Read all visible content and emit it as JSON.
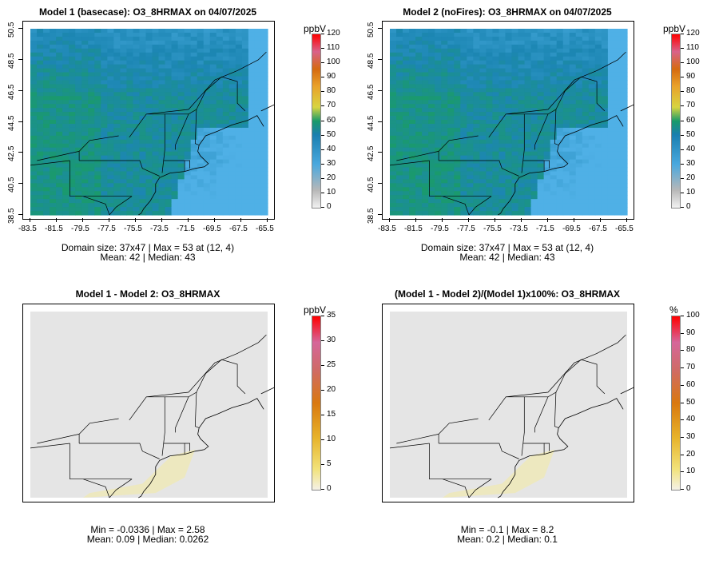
{
  "panels": [
    {
      "title": "Model 1 (basecase): O3_8HRMAX on 04/07/2025",
      "stats_line1": "Domain size: 37x47 | Max = 53 at (12, 4)",
      "stats_line2": "Mean: 42 |  Median: 43",
      "colorbar_unit": "ppbV",
      "colorbar_ticks": [
        "0",
        "10",
        "20",
        "30",
        "40",
        "50",
        "60",
        "70",
        "80",
        "90",
        "100",
        "110",
        "120"
      ],
      "field": "ozone"
    },
    {
      "title": "Model 2 (noFires): O3_8HRMAX on 04/07/2025",
      "stats_line1": "Domain size: 37x47 | Max = 53 at (12, 4)",
      "stats_line2": "Mean: 42 |  Median: 43",
      "colorbar_unit": "ppbV",
      "colorbar_ticks": [
        "0",
        "10",
        "20",
        "30",
        "40",
        "50",
        "60",
        "70",
        "80",
        "90",
        "100",
        "110",
        "120"
      ],
      "field": "ozone"
    },
    {
      "title": "Model 1 - Model 2: O3_8HRMAX",
      "stats_line1": "Min = -0.0336 | Max = 2.58",
      "stats_line2": "Mean: 0.09 |  Median: 0.0262",
      "colorbar_unit": "ppbV",
      "colorbar_ticks": [
        "0",
        "5",
        "10",
        "15",
        "20",
        "25",
        "30",
        "35"
      ],
      "field": "diff"
    },
    {
      "title": "(Model 1 - Model 2)/(Model 1)x100%: O3_8HRMAX",
      "stats_line1": "Min = -0.1 | Max = 8.2",
      "stats_line2": "Mean: 0.2 |  Median: 0.1",
      "colorbar_unit": "%",
      "colorbar_ticks": [
        "0",
        "10",
        "20",
        "30",
        "40",
        "50",
        "60",
        "70",
        "80",
        "90",
        "100"
      ],
      "field": "diff"
    }
  ],
  "x_ticks": [
    "-83.5",
    "-81.5",
    "-79.5",
    "-77.5",
    "-75.5",
    "-73.5",
    "-71.5",
    "-69.5",
    "-67.5",
    "-65.5"
  ],
  "y_ticks": [
    "38.5",
    "40.5",
    "42.5",
    "44.5",
    "46.5",
    "48.5",
    "50.5"
  ],
  "colors": {
    "ozone_low": "#4fb0e6",
    "ozone_mid": "#1c86b3",
    "ozone_high": "#1a9a6c",
    "diff_bg": "#e5e5e5",
    "diff_plume": "#efe9b8"
  },
  "chart_data": [
    {
      "type": "heatmap",
      "title": "Model 1 (basecase): O3_8HRMAX on 04/07/2025",
      "xlabel": "",
      "ylabel": "",
      "xlim": [
        -83.5,
        -65.5
      ],
      "ylim": [
        38.5,
        50.5
      ],
      "colorbar": {
        "unit": "ppbV",
        "range": [
          0,
          120
        ]
      },
      "domain_size": "37x47",
      "max": 53,
      "max_at": [
        12,
        4
      ],
      "mean": 42,
      "median": 43
    },
    {
      "type": "heatmap",
      "title": "Model 2 (noFires): O3_8HRMAX on 04/07/2025",
      "xlabel": "",
      "ylabel": "",
      "xlim": [
        -83.5,
        -65.5
      ],
      "ylim": [
        38.5,
        50.5
      ],
      "colorbar": {
        "unit": "ppbV",
        "range": [
          0,
          120
        ]
      },
      "domain_size": "37x47",
      "max": 53,
      "max_at": [
        12,
        4
      ],
      "mean": 42,
      "median": 43
    },
    {
      "type": "heatmap",
      "title": "Model 1 - Model 2: O3_8HRMAX",
      "colorbar": {
        "unit": "ppbV",
        "range": [
          0,
          35
        ]
      },
      "min": -0.0336,
      "max": 2.58,
      "mean": 0.09,
      "median": 0.0262
    },
    {
      "type": "heatmap",
      "title": "(Model 1 - Model 2)/(Model 1)x100%: O3_8HRMAX",
      "colorbar": {
        "unit": "%",
        "range": [
          0,
          100
        ]
      },
      "min": -0.1,
      "max": 8.2,
      "mean": 0.2,
      "median": 0.1
    }
  ]
}
